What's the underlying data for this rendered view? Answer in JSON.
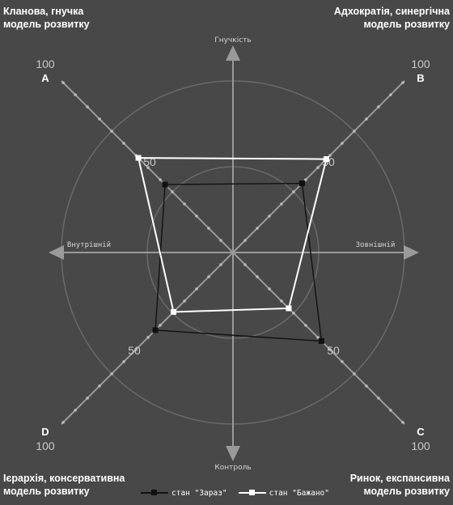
{
  "corners": {
    "top_left": [
      "Кланова, гнучка",
      "модель розвитку"
    ],
    "top_right": [
      "Адхократія, синергічна",
      "модель розвитку"
    ],
    "bottom_left": [
      "Ієрархія, консервативна",
      "модель розвитку"
    ],
    "bottom_right": [
      "Ринок, експансивна",
      "модель розвитку"
    ]
  },
  "chart_data": {
    "type": "radar",
    "axis_labels": {
      "top": "Гнучкість",
      "bottom": "Контроль",
      "left": "Внутрішній",
      "right": "Зовнішній"
    },
    "diagonals": [
      {
        "letter": "A",
        "direction": "top-left"
      },
      {
        "letter": "B",
        "direction": "top-right"
      },
      {
        "letter": "C",
        "direction": "bottom-right"
      },
      {
        "letter": "D",
        "direction": "bottom-left"
      }
    ],
    "range": [
      0,
      100
    ],
    "tick_labels": [
      "50",
      "100"
    ],
    "series": [
      {
        "name": "стан \"Зараз\"",
        "color": "#111111",
        "values": {
          "A": 56,
          "B": 57,
          "C": 73,
          "D": 64
        }
      },
      {
        "name": "стан \"Бажано\"",
        "color": "#ffffff",
        "values": {
          "A": 78,
          "B": 77,
          "C": 46,
          "D": 49
        }
      }
    ],
    "legend_position": "bottom",
    "colors": {
      "background": "#484848",
      "axis": "#9a9a9a",
      "circle": "#6a6a6a",
      "text": "#ffffff"
    }
  }
}
